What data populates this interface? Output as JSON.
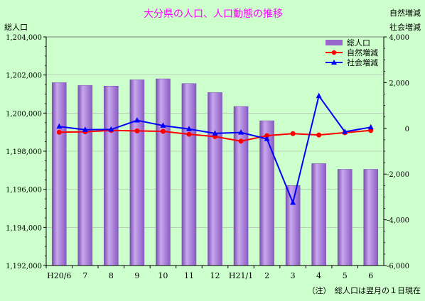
{
  "chart_data": {
    "type": "bar",
    "title": "大分県の人口、人口動態の推移",
    "ylabel_left": "総人口",
    "ylabel_right_1": "自然増減",
    "ylabel_right_2": "社会増減",
    "note": "（注）　総人口は翌月の１日現在",
    "categories": [
      "H20/6",
      "7",
      "8",
      "9",
      "10",
      "11",
      "12",
      "H21/1",
      "2",
      "3",
      "4",
      "5",
      "6"
    ],
    "ylim_left": [
      1192000,
      1204000
    ],
    "yticks_left": [
      "1,192,000",
      "1,194,000",
      "1,196,000",
      "1,198,000",
      "1,200,000",
      "1,202,000",
      "1,204,000"
    ],
    "ylim_right": [
      -6000,
      4000
    ],
    "yticks_right": [
      "-6,000",
      "-4,000",
      "-2,000",
      "0",
      "2,000",
      "4,000"
    ],
    "legend": [
      "総人口",
      "自然増減",
      "社会増減"
    ],
    "legend_position": "top-right",
    "series": [
      {
        "name": "総人口",
        "type": "bar",
        "axis": "left",
        "color": "#9966cc",
        "values": [
          1201600,
          1201450,
          1201420,
          1201750,
          1201800,
          1201550,
          1201080,
          1200350,
          1199600,
          1196200,
          1197350,
          1197050,
          1197050
        ]
      },
      {
        "name": "自然増減",
        "type": "line",
        "axis": "right",
        "color": "#ff0000",
        "marker": "circle",
        "values": [
          -170,
          -150,
          -90,
          -110,
          -130,
          -260,
          -360,
          -560,
          -320,
          -230,
          -290,
          -190,
          -90
        ]
      },
      {
        "name": "社会増減",
        "type": "line",
        "axis": "right",
        "color": "#0000ff",
        "marker": "triangle",
        "values": [
          80,
          -60,
          -50,
          350,
          120,
          -30,
          -220,
          -180,
          -460,
          -3250,
          1420,
          -150,
          50
        ]
      }
    ]
  }
}
